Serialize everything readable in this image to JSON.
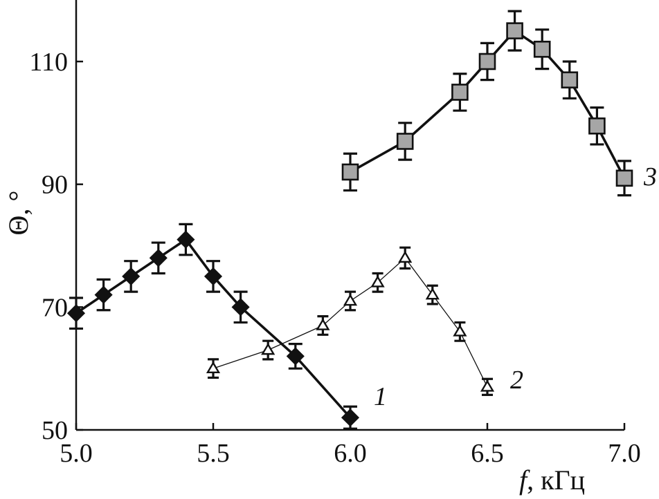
{
  "chart_data": {
    "type": "line",
    "xlabel_italic": "f",
    "xlabel_rest": ", кГц",
    "ylabel": "Θ, °",
    "xlim": [
      5.0,
      7.0
    ],
    "ylim": [
      50,
      118
    ],
    "xticks": [
      5.0,
      5.5,
      6.0,
      6.5,
      7.0
    ],
    "xtick_labels": [
      "5.0",
      "5.5",
      "6.0",
      "6.5",
      "7.0"
    ],
    "yticks": [
      50,
      70,
      90,
      110
    ],
    "ytick_labels": [
      "50",
      "70",
      "90",
      "110"
    ],
    "grid": false,
    "series": [
      {
        "name": "1",
        "marker": "diamond",
        "marker_fill": "#111111",
        "line_color": "#111111",
        "line_width": "thick",
        "x": [
          5.0,
          5.1,
          5.2,
          5.3,
          5.4,
          5.5,
          5.6,
          5.8,
          6.0
        ],
        "y": [
          69,
          72,
          75,
          78,
          81,
          75,
          70,
          62,
          52
        ],
        "err": [
          2.5,
          2.5,
          2.5,
          2.5,
          2.5,
          2.5,
          2.5,
          2.0,
          1.8
        ]
      },
      {
        "name": "2",
        "marker": "triangle",
        "marker_fill": "#ffffff",
        "line_color": "#111111",
        "line_width": "thin",
        "x": [
          5.5,
          5.7,
          5.9,
          6.0,
          6.1,
          6.2,
          6.3,
          6.4,
          6.5
        ],
        "y": [
          60,
          63,
          67,
          71,
          74,
          78,
          72,
          66,
          57
        ],
        "err": [
          1.5,
          1.5,
          1.5,
          1.5,
          1.5,
          1.7,
          1.5,
          1.5,
          1.3
        ]
      },
      {
        "name": "3",
        "marker": "square",
        "marker_fill": "#a6a6a6",
        "line_color": "#111111",
        "line_width": "thick",
        "x": [
          6.0,
          6.2,
          6.4,
          6.5,
          6.6,
          6.7,
          6.8,
          6.9,
          7.0
        ],
        "y": [
          92,
          97,
          105,
          110,
          115,
          112,
          107,
          99.5,
          91
        ],
        "err": [
          3.0,
          3.0,
          3.0,
          3.0,
          3.2,
          3.2,
          3.0,
          3.0,
          2.8
        ]
      }
    ]
  }
}
